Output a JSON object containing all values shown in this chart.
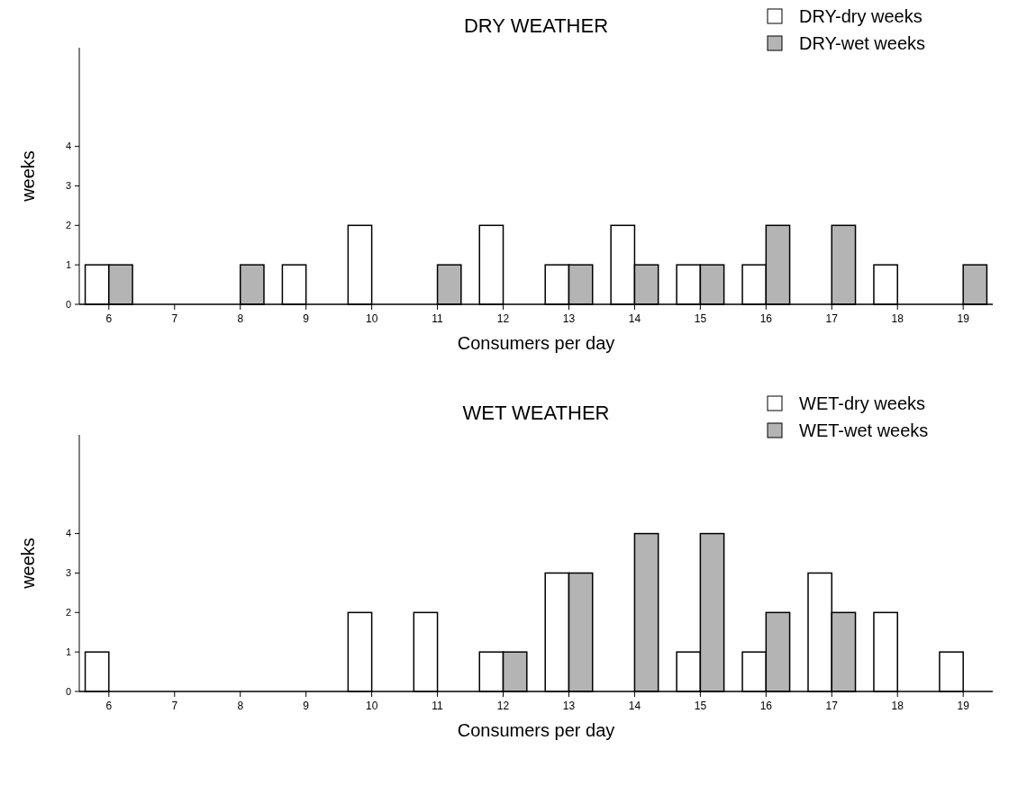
{
  "chart_data": [
    {
      "type": "bar",
      "title": "DRY WEATHER",
      "xlabel": "Consumers per day",
      "ylabel": "weeks",
      "categories": [
        "6",
        "7",
        "8",
        "9",
        "10",
        "11",
        "12",
        "13",
        "14",
        "15",
        "16",
        "17",
        "18",
        "19"
      ],
      "series": [
        {
          "name": "DRY-dry weeks",
          "color": "#ffffff",
          "values": [
            1,
            0,
            0,
            1,
            2,
            0,
            2,
            1,
            2,
            1,
            1,
            0,
            1,
            0
          ]
        },
        {
          "name": "DRY-wet weeks",
          "color": "#b4b4b4",
          "values": [
            1,
            0,
            1,
            0,
            0,
            1,
            0,
            1,
            1,
            1,
            2,
            2,
            0,
            1
          ]
        }
      ],
      "ylim": [
        0,
        6.5
      ],
      "yticks": [
        0,
        1,
        2,
        3,
        4
      ],
      "grid": false,
      "legend": "top right"
    },
    {
      "type": "bar",
      "title": "WET WEATHER",
      "xlabel": "Consumers per day",
      "ylabel": "weeks",
      "categories": [
        "6",
        "7",
        "8",
        "9",
        "10",
        "11",
        "12",
        "13",
        "14",
        "15",
        "16",
        "17",
        "18",
        "19"
      ],
      "series": [
        {
          "name": "WET-dry weeks",
          "color": "#ffffff",
          "values": [
            1,
            0,
            0,
            0,
            2,
            2,
            1,
            3,
            0,
            1,
            1,
            3,
            2,
            1
          ]
        },
        {
          "name": "WET-wet weeks",
          "color": "#b4b4b4",
          "values": [
            0,
            0,
            0,
            0,
            0,
            0,
            1,
            3,
            4,
            4,
            2,
            2,
            0,
            0
          ]
        }
      ],
      "ylim": [
        0,
        6.5
      ],
      "yticks": [
        0,
        1,
        2,
        3,
        4
      ],
      "grid": false,
      "legend": "top right"
    }
  ]
}
